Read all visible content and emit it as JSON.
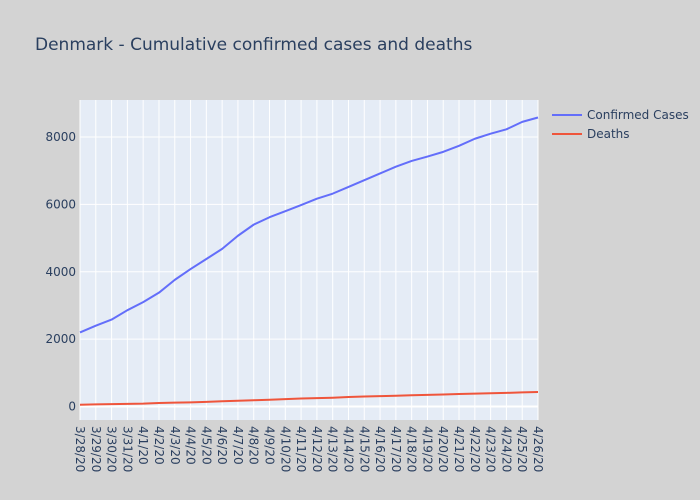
{
  "chart_data": {
    "type": "line",
    "title": "Denmark - Cumulative confirmed cases and deaths",
    "xlabel": "",
    "ylabel": "",
    "x": [
      "3/28/20",
      "3/29/20",
      "3/30/20",
      "3/31/20",
      "4/1/20",
      "4/2/20",
      "4/3/20",
      "4/4/20",
      "4/5/20",
      "4/6/20",
      "4/7/20",
      "4/8/20",
      "4/9/20",
      "4/10/20",
      "4/11/20",
      "4/12/20",
      "4/13/20",
      "4/14/20",
      "4/15/20",
      "4/16/20",
      "4/17/20",
      "4/18/20",
      "4/19/20",
      "4/20/20",
      "4/21/20",
      "4/22/20",
      "4/23/20",
      "4/24/20",
      "4/25/20",
      "4/26/20"
    ],
    "yticks": [
      0,
      2000,
      4000,
      6000,
      8000
    ],
    "ylim": [
      -400,
      9100
    ],
    "grid": true,
    "legend_position": "top-right",
    "series": [
      {
        "name": "Confirmed Cases",
        "color": "#636efa",
        "values": [
          2200,
          2400,
          2580,
          2860,
          3100,
          3380,
          3760,
          4080,
          4380,
          4680,
          5070,
          5400,
          5620,
          5800,
          5980,
          6170,
          6320,
          6520,
          6720,
          6920,
          7120,
          7290,
          7420,
          7560,
          7740,
          7950,
          8100,
          8230,
          8450,
          8580
        ]
      },
      {
        "name": "Deaths",
        "color": "#ef553b",
        "values": [
          52,
          65,
          72,
          77,
          85,
          104,
          116,
          125,
          139,
          155,
          170,
          187,
          203,
          218,
          238,
          250,
          262,
          281,
          297,
          308,
          321,
          336,
          346,
          356,
          370,
          384,
          395,
          405,
          419,
          431
        ]
      }
    ]
  }
}
